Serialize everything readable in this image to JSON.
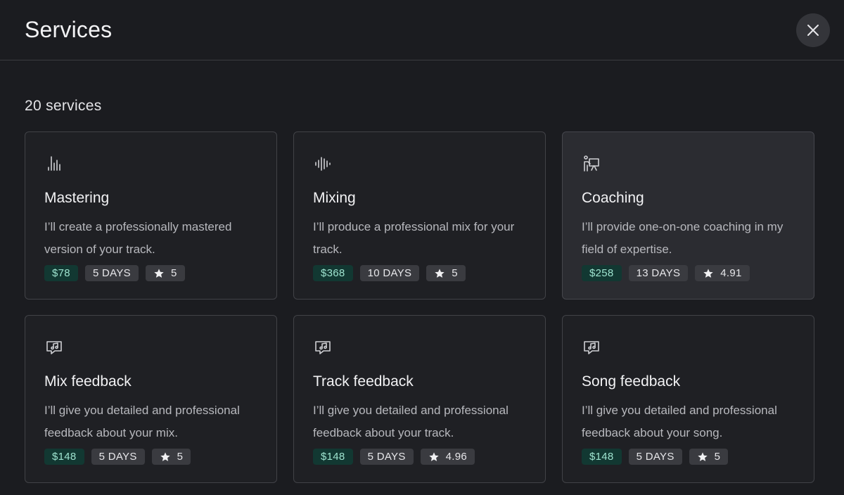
{
  "header": {
    "title": "Services",
    "close_icon": "close-icon"
  },
  "summary": {
    "count_text": "20 services"
  },
  "services": [
    {
      "icon": "bars-icon",
      "name": "Mastering",
      "description": "I’ll create a professionally mastered version of your track.",
      "price": "$78",
      "duration": "5 DAYS",
      "rating": "5",
      "highlighted": false
    },
    {
      "icon": "waveform-icon",
      "name": "Mixing",
      "description": "I’ll produce a professional mix for your track.",
      "price": "$368",
      "duration": "10 DAYS",
      "rating": "5",
      "highlighted": false
    },
    {
      "icon": "presenter-icon",
      "name": "Coaching",
      "description": "I’ll provide one-on-one coaching in my field of expertise.",
      "price": "$258",
      "duration": "13 DAYS",
      "rating": "4.91",
      "highlighted": true
    },
    {
      "icon": "music-chat-icon",
      "name": "Mix feedback",
      "description": "I’ll give you detailed and professional feedback about your mix.",
      "price": "$148",
      "duration": "5 DAYS",
      "rating": "5",
      "highlighted": false
    },
    {
      "icon": "music-chat-icon",
      "name": "Track feedback",
      "description": "I’ll give you detailed and professional feedback about your track.",
      "price": "$148",
      "duration": "5 DAYS",
      "rating": "4.96",
      "highlighted": false
    },
    {
      "icon": "music-chat-icon",
      "name": "Song feedback",
      "description": "I’ll give you detailed and professional feedback about your song.",
      "price": "$148",
      "duration": "5 DAYS",
      "rating": "5",
      "highlighted": false
    }
  ],
  "colors": {
    "background": "#1b1c20",
    "card": "#1f2024",
    "card_highlight": "#2b2c31",
    "price_tag": "#123832",
    "price_text": "#9ee3cf"
  }
}
